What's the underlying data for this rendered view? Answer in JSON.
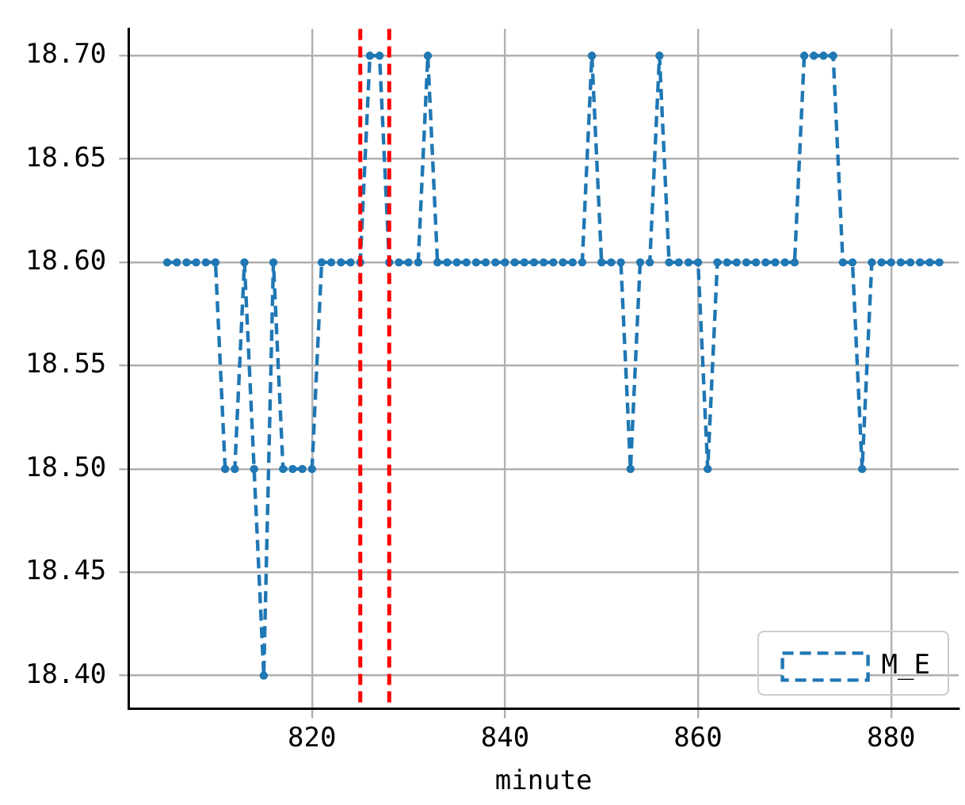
{
  "chart_data": {
    "type": "line",
    "xlabel": "minute",
    "x": [
      805,
      806,
      807,
      808,
      809,
      810,
      811,
      812,
      813,
      814,
      815,
      816,
      817,
      818,
      819,
      820,
      821,
      822,
      823,
      824,
      825,
      826,
      827,
      828,
      829,
      830,
      831,
      832,
      833,
      834,
      835,
      836,
      837,
      838,
      839,
      840,
      841,
      842,
      843,
      844,
      845,
      846,
      847,
      848,
      849,
      850,
      851,
      852,
      853,
      854,
      855,
      856,
      857,
      858,
      859,
      860,
      861,
      862,
      863,
      864,
      865,
      866,
      867,
      868,
      869,
      870,
      871,
      872,
      873,
      874,
      875,
      876,
      877,
      878,
      879,
      880,
      881,
      882,
      883,
      884,
      885
    ],
    "series": [
      {
        "name": "M_E",
        "color": "#1f77b4",
        "values": [
          18.6,
          18.6,
          18.6,
          18.6,
          18.6,
          18.6,
          18.5,
          18.5,
          18.6,
          18.5,
          18.4,
          18.6,
          18.5,
          18.5,
          18.5,
          18.5,
          18.6,
          18.6,
          18.6,
          18.6,
          18.6,
          18.7,
          18.7,
          18.6,
          18.6,
          18.6,
          18.6,
          18.7,
          18.6,
          18.6,
          18.6,
          18.6,
          18.6,
          18.6,
          18.6,
          18.6,
          18.6,
          18.6,
          18.6,
          18.6,
          18.6,
          18.6,
          18.6,
          18.6,
          18.7,
          18.6,
          18.6,
          18.6,
          18.5,
          18.6,
          18.6,
          18.7,
          18.6,
          18.6,
          18.6,
          18.6,
          18.5,
          18.6,
          18.6,
          18.6,
          18.6,
          18.6,
          18.6,
          18.6,
          18.6,
          18.6,
          18.7,
          18.7,
          18.7,
          18.7,
          18.6,
          18.6,
          18.5,
          18.6,
          18.6,
          18.6,
          18.6,
          18.6,
          18.6,
          18.6,
          18.6
        ]
      }
    ],
    "xlim": [
      801,
      887
    ],
    "xticks": [
      820,
      840,
      860,
      880
    ],
    "ylim": [
      18.384,
      18.713
    ],
    "yticks": [
      {
        "value": 18.4,
        "label": "18.40"
      },
      {
        "value": 18.45,
        "label": "18.45"
      },
      {
        "value": 18.5,
        "label": "18.50"
      },
      {
        "value": 18.55,
        "label": "18.55"
      },
      {
        "value": 18.6,
        "label": "18.60"
      },
      {
        "value": 18.65,
        "label": "18.65"
      },
      {
        "value": 18.7,
        "label": "18.70"
      }
    ],
    "ref_lines": [
      {
        "axis": "x",
        "value": 825,
        "color": "#ff0000",
        "line_style": "dashed"
      },
      {
        "axis": "x",
        "value": 828,
        "color": "#ff0000",
        "line_style": "dashed"
      }
    ],
    "grid": true,
    "legend": "bottom right",
    "marker": "circle",
    "line_style": "dashed"
  }
}
